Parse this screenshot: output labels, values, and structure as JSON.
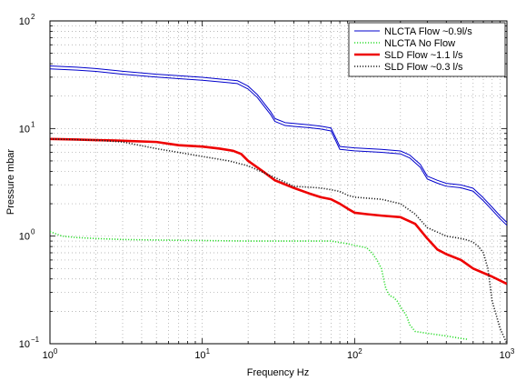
{
  "chart_data": {
    "type": "line",
    "xlabel": "Frequency Hz",
    "ylabel": "Pressure mbar",
    "xscale": "log",
    "yscale": "log",
    "xlim": [
      1,
      1000
    ],
    "ylim": [
      0.1,
      100
    ],
    "grid": true,
    "legend_position": "top-right",
    "x_tick_labels": [
      {
        "value": 1,
        "base": "10",
        "exp": "0"
      },
      {
        "value": 10,
        "base": "10",
        "exp": "1"
      },
      {
        "value": 100,
        "base": "10",
        "exp": "2"
      },
      {
        "value": 1000,
        "base": "10",
        "exp": "3"
      }
    ],
    "y_tick_labels": [
      {
        "value": 0.1,
        "base": "10",
        "exp": "−1"
      },
      {
        "value": 1,
        "base": "10",
        "exp": "0"
      },
      {
        "value": 10,
        "base": "10",
        "exp": "1"
      },
      {
        "value": 100,
        "base": "10",
        "exp": "2"
      }
    ],
    "series": [
      {
        "name": "NLCTA Flow ~0.9l/s",
        "color": "#0000cc",
        "style": "solid-double",
        "width": 1.0,
        "x": [
          1,
          1.5,
          2,
          3,
          5,
          7,
          10,
          13,
          17,
          20,
          23,
          26,
          28,
          30,
          35,
          40,
          50,
          60,
          70,
          80,
          100,
          150,
          200,
          230,
          270,
          300,
          350,
          400,
          500,
          600,
          700,
          800,
          900,
          1000
        ],
        "y": [
          37,
          36,
          35,
          33,
          31,
          30,
          29,
          28,
          27,
          24,
          20,
          16,
          14,
          12,
          11,
          10.8,
          10.5,
          10.2,
          9.8,
          6.6,
          6.4,
          6.2,
          6.0,
          5.5,
          4.5,
          3.5,
          3.2,
          3.0,
          2.9,
          2.7,
          2.2,
          1.8,
          1.5,
          1.3
        ]
      },
      {
        "name": "NLCTA No Flow",
        "color": "#33dd33",
        "style": "dotted",
        "width": 1.6,
        "x": [
          1,
          1.2,
          1.5,
          2,
          3,
          5,
          10,
          20,
          50,
          70,
          90,
          100,
          120,
          130,
          140,
          150,
          155,
          160,
          165,
          170,
          180,
          190,
          200,
          210,
          220,
          230,
          250,
          300,
          400,
          500,
          550
        ],
        "y": [
          1.1,
          1.0,
          0.97,
          0.95,
          0.93,
          0.92,
          0.91,
          0.9,
          0.9,
          0.9,
          0.85,
          0.82,
          0.78,
          0.7,
          0.6,
          0.5,
          0.4,
          0.33,
          0.3,
          0.28,
          0.27,
          0.25,
          0.22,
          0.2,
          0.18,
          0.15,
          0.13,
          0.125,
          0.118,
          0.112,
          0.11
        ]
      },
      {
        "name": "SLD Flow ~1.1 l/s",
        "color": "#ee0000",
        "style": "solid",
        "width": 2.6,
        "x": [
          1,
          1.5,
          2,
          3,
          5,
          7,
          10,
          13,
          16,
          18,
          20,
          25,
          30,
          40,
          50,
          60,
          70,
          80,
          90,
          100,
          120,
          150,
          200,
          250,
          300,
          350,
          400,
          500,
          600,
          800,
          1000
        ],
        "y": [
          8.0,
          7.9,
          7.8,
          7.7,
          7.5,
          7.0,
          6.8,
          6.5,
          6.2,
          5.8,
          5.0,
          4.0,
          3.3,
          2.8,
          2.5,
          2.3,
          2.2,
          2.0,
          1.8,
          1.65,
          1.6,
          1.55,
          1.5,
          1.3,
          0.95,
          0.75,
          0.68,
          0.6,
          0.5,
          0.42,
          0.36
        ]
      },
      {
        "name": "SLD Flow ~0.3 l/s",
        "color": "#222222",
        "style": "dotted",
        "width": 1.6,
        "x": [
          1,
          2,
          3,
          5,
          7,
          10,
          15,
          20,
          30,
          40,
          50,
          60,
          70,
          80,
          90,
          100,
          150,
          200,
          250,
          300,
          400,
          500,
          550,
          600,
          650,
          700,
          750,
          800,
          900,
          1000
        ],
        "y": [
          8.0,
          7.8,
          7.5,
          6.5,
          6.0,
          5.5,
          5.0,
          4.5,
          3.5,
          2.9,
          2.85,
          2.8,
          2.7,
          2.6,
          2.4,
          2.3,
          2.2,
          2.0,
          1.6,
          1.2,
          1.0,
          0.95,
          0.92,
          0.88,
          0.8,
          0.7,
          0.5,
          0.25,
          0.14,
          0.1
        ]
      }
    ]
  }
}
